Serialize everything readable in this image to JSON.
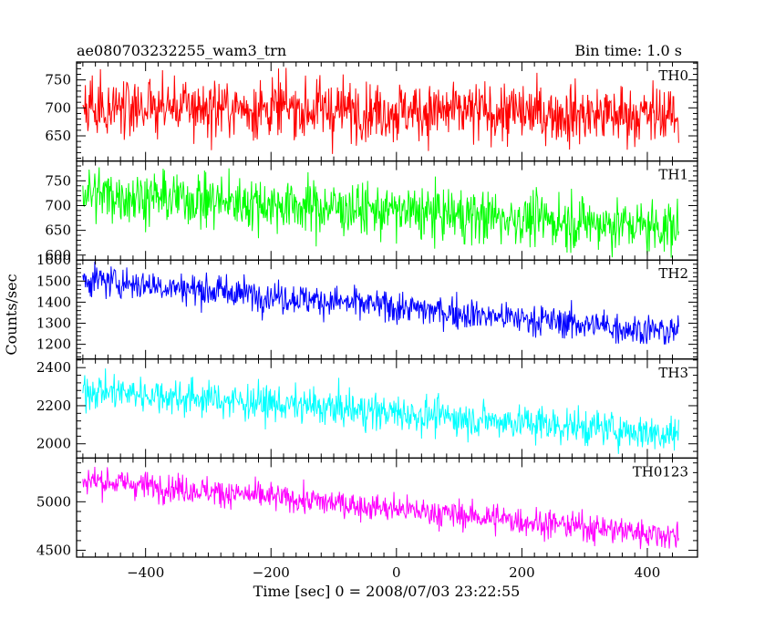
{
  "header": {
    "title": "ae080703232255_wam3_trn",
    "bin_time": "Bin time: 1.0 s"
  },
  "chart_data": {
    "type": "line",
    "xlabel": "Time [sec] 0 = 2008/07/03 23:22:55",
    "ylabel": "Counts/sec",
    "xlim": [
      -510,
      480
    ],
    "xticks": [
      -400,
      -200,
      0,
      200,
      400
    ],
    "xtick_labels": [
      "−400",
      "−200",
      "0",
      "200",
      "400"
    ],
    "x_range": [
      -500,
      450
    ],
    "bin": 1.0,
    "grid": false,
    "panels": [
      {
        "name": "TH0",
        "color": "#ff0000",
        "ylim": [
          605,
          782
        ],
        "yticks": [
          650,
          700,
          750
        ],
        "trend": [
          [
            -500,
            704
          ],
          [
            450,
            686
          ]
        ],
        "noise": 27
      },
      {
        "name": "TH1",
        "color": "#00ff00",
        "ylim": [
          590,
          790
        ],
        "yticks": [
          600,
          650,
          700,
          750
        ],
        "trend": [
          [
            -500,
            725
          ],
          [
            450,
            655
          ]
        ],
        "noise": 27
      },
      {
        "name": "TH2",
        "color": "#0000ff",
        "ylim": [
          1130,
          1600
        ],
        "yticks": [
          1200,
          1300,
          1400,
          1500,
          1600
        ],
        "trend": [
          [
            -500,
            1510
          ],
          [
            450,
            1255
          ]
        ],
        "noise": 38
      },
      {
        "name": "TH3",
        "color": "#00ffff",
        "ylim": [
          1925,
          2445
        ],
        "yticks": [
          2000,
          2200,
          2400
        ],
        "trend": [
          [
            -500,
            2285
          ],
          [
            450,
            2050
          ]
        ],
        "noise": 48
      },
      {
        "name": "TH0123",
        "color": "#ff00ff",
        "ylim": [
          4430,
          5450
        ],
        "yticks": [
          4500,
          5000
        ],
        "trend": [
          [
            -500,
            5230
          ],
          [
            450,
            4650
          ]
        ],
        "noise": 72
      }
    ]
  }
}
